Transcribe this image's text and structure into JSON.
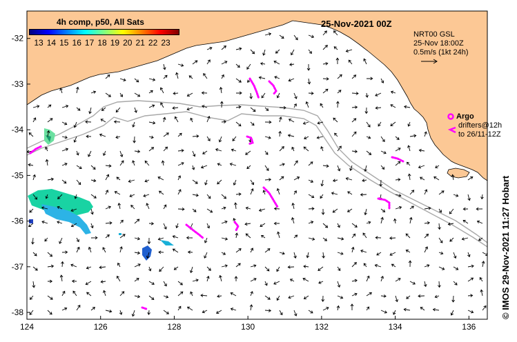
{
  "title": {
    "composite_label": "4h comp, p50, All Sats",
    "date_label": "25-Nov-2021 00Z"
  },
  "colorbar": {
    "ticks": [
      "13",
      "14",
      "15",
      "16",
      "17",
      "18",
      "19",
      "20",
      "21",
      "22",
      "23"
    ],
    "colors": [
      "#00007f",
      "#0000ff",
      "#0080ff",
      "#00ffff",
      "#80ff80",
      "#ffff00",
      "#ff8000",
      "#ff0000",
      "#7f0000"
    ]
  },
  "current_legend": {
    "line1": "NRT00 GSL",
    "line2": "25-Nov 18:00Z",
    "line3": "0.5m/s (1kt 24h)"
  },
  "argo_legend": {
    "label": "Argo",
    "drifters": "drifters@12h",
    "range": "to 26/11-12Z",
    "color": "#ff00ff"
  },
  "credit": "© IMOS 29-Nov-2021 11:27 Hobart",
  "axes": {
    "x_ticks": [
      "124",
      "126",
      "128",
      "130",
      "132",
      "134",
      "136"
    ],
    "y_ticks": [
      "-32",
      "-33",
      "-34",
      "-35",
      "-36",
      "-37",
      "-38"
    ],
    "lon_range": [
      124,
      136.5
    ],
    "lat_range": [
      -38.15,
      -31.4
    ]
  },
  "colors": {
    "land": "#fcc895",
    "ocean": "#ffffff",
    "shelf_line": "#a8a8a8",
    "arrow": "#000000"
  }
}
